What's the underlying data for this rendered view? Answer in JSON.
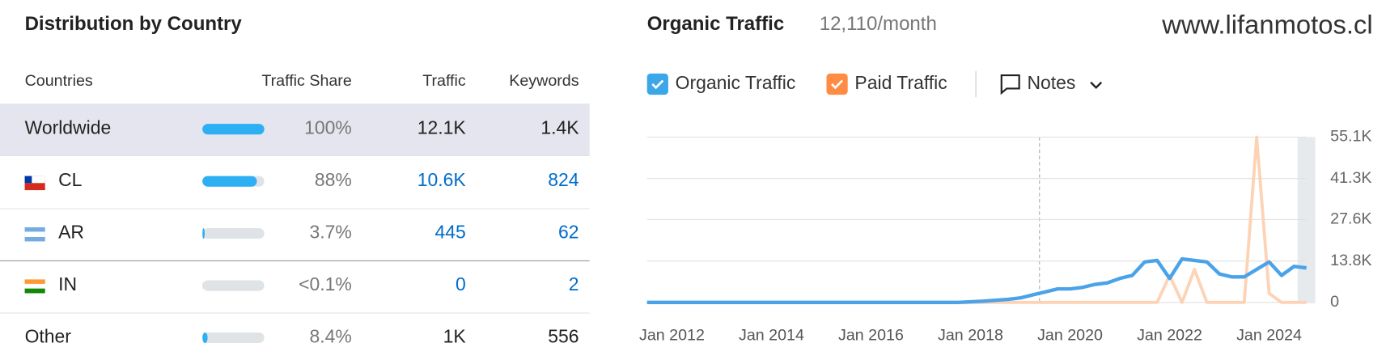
{
  "site": "www.lifanmotos.cl",
  "distribution": {
    "title": "Distribution by Country",
    "headers": [
      "Countries",
      "Traffic Share",
      "Traffic",
      "Keywords"
    ],
    "rows": [
      {
        "name": "Worldwide",
        "share": {
          "value": 100,
          "label": "100%"
        },
        "traffic": "12.1K",
        "keywords": "1.4K"
      },
      {
        "name": "CL",
        "share": {
          "value": 88,
          "label": "88%"
        },
        "traffic": "10.6K",
        "keywords": "824"
      },
      {
        "name": "AR",
        "share": {
          "value": 3.7,
          "label": "3.7%"
        },
        "traffic": "445",
        "keywords": "62"
      },
      {
        "name": "IN",
        "share": {
          "value": 0.1,
          "label": "<0.1%"
        },
        "traffic": "0",
        "keywords": "2"
      },
      {
        "name": "Other",
        "share": {
          "value": 8.4,
          "label": "8.4%"
        },
        "traffic": "1K",
        "keywords": "556"
      }
    ]
  },
  "chart_data": {
    "type": "line",
    "title": "Organic Traffic",
    "subtitle": "12,110/month",
    "notes": "Notes",
    "x": [
      "2011-07",
      "2017-10",
      "2018-04",
      "2018-10",
      "2019-01",
      "2019-04",
      "2019-07",
      "2019-10",
      "2020-01",
      "2020-04",
      "2020-07",
      "2020-10",
      "2021-01",
      "2021-04",
      "2021-07",
      "2021-10",
      "2022-01",
      "2022-04",
      "2022-07",
      "2022-10",
      "2023-01",
      "2023-04",
      "2023-07",
      "2023-10",
      "2024-01",
      "2024-04",
      "2024-07",
      "2024-10"
    ],
    "series": [
      {
        "name": "Organic Traffic",
        "color": "#4aa3e8",
        "values": [
          0,
          0,
          400,
          1000,
          1500,
          2500,
          3500,
          4500,
          4500,
          5000,
          6000,
          6500,
          8000,
          9000,
          13500,
          14000,
          8000,
          14500,
          14000,
          13500,
          9500,
          8500,
          8500,
          11000,
          13500,
          9000,
          12000,
          11500
        ]
      },
      {
        "name": "Paid Traffic",
        "color": "#fdd3b6",
        "values": [
          0,
          0,
          0,
          0,
          0,
          0,
          0,
          0,
          0,
          0,
          0,
          0,
          0,
          0,
          0,
          0,
          9000,
          0,
          11000,
          0,
          0,
          0,
          0,
          55100,
          3000,
          0,
          0,
          0
        ]
      }
    ],
    "xlim": [
      "2011-07",
      "2024-10"
    ],
    "xticks": [
      {
        "value": "2012-01",
        "label": "Jan 2012"
      },
      {
        "value": "2014-01",
        "label": "Jan 2014"
      },
      {
        "value": "2016-01",
        "label": "Jan 2016"
      },
      {
        "value": "2018-01",
        "label": "Jan 2018"
      },
      {
        "value": "2020-01",
        "label": "Jan 2020"
      },
      {
        "value": "2022-01",
        "label": "Jan 2022"
      },
      {
        "value": "2024-01",
        "label": "Jan 2024"
      }
    ],
    "ylim": [
      0,
      55100
    ],
    "yticks": [
      0,
      {
        "value": 13800,
        "label": "13.8K"
      },
      {
        "value": 27600,
        "label": "27.6K"
      },
      {
        "value": 41300,
        "label": "41.3K"
      },
      {
        "value": 55100,
        "label": "55.1K"
      }
    ],
    "grid": true
  }
}
